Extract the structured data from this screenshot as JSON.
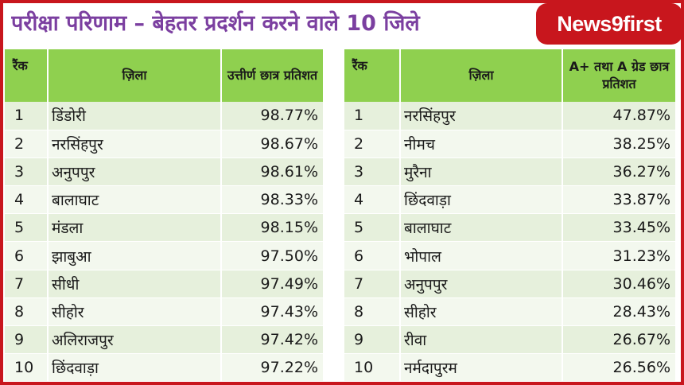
{
  "header": {
    "title": "परीक्षा परिणाम – बेहतर प्रदर्शन करने वाले 10 जिले",
    "logo_text": "News9first"
  },
  "left_table": {
    "headers": [
      "रैंक",
      "ज़िला",
      "उत्तीर्ण छात्र प्रतिशत"
    ],
    "rows": [
      {
        "rank": "1",
        "district": "डिंडोरी",
        "value": "98.77%"
      },
      {
        "rank": "2",
        "district": "नरसिंहपुर",
        "value": "98.67%"
      },
      {
        "rank": "3",
        "district": "अनुपपुर",
        "value": "98.61%"
      },
      {
        "rank": "4",
        "district": "बालाघाट",
        "value": "98.33%"
      },
      {
        "rank": "5",
        "district": "मंडला",
        "value": "98.15%"
      },
      {
        "rank": "6",
        "district": "झाबुआ",
        "value": "97.50%"
      },
      {
        "rank": "7",
        "district": "सीधी",
        "value": "97.49%"
      },
      {
        "rank": "8",
        "district": "सीहोर",
        "value": "97.43%"
      },
      {
        "rank": "9",
        "district": "अलिराजपुर",
        "value": "97.42%"
      },
      {
        "rank": "10",
        "district": "छिंदवाड़ा",
        "value": "97.22%"
      }
    ]
  },
  "right_table": {
    "headers": [
      "रैंक",
      "ज़िला",
      "A+ तथा A ग्रेड छात्र प्रतिशत"
    ],
    "rows": [
      {
        "rank": "1",
        "district": "नरसिंहपुर",
        "value": "47.87%"
      },
      {
        "rank": "2",
        "district": "नीमच",
        "value": "38.25%"
      },
      {
        "rank": "3",
        "district": "मुरैना",
        "value": "36.27%"
      },
      {
        "rank": "4",
        "district": "छिंदवाड़ा",
        "value": "33.87%"
      },
      {
        "rank": "5",
        "district": "बालाघाट",
        "value": "33.45%"
      },
      {
        "rank": "6",
        "district": "भोपाल",
        "value": "31.23%"
      },
      {
        "rank": "7",
        "district": "अनुपपुर",
        "value": "30.46%"
      },
      {
        "rank": "8",
        "district": "सीहोर",
        "value": "28.43%"
      },
      {
        "rank": "9",
        "district": "रीवा",
        "value": "26.67%"
      },
      {
        "rank": "10",
        "district": "नर्मदापुरम",
        "value": "26.56%"
      }
    ]
  },
  "colors": {
    "title": "#7b3fa0",
    "brand": "#c8161d",
    "header_bg": "#8fd04f",
    "row_odd": "#e6f0dc",
    "row_even": "#f3f8ee"
  }
}
